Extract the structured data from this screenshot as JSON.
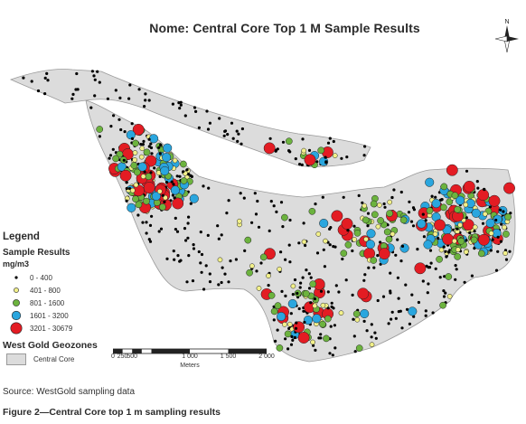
{
  "map": {
    "title": "Nome: Central Core Top 1 M Sample Results",
    "north_arrow_icon": "north-arrow-icon",
    "zone_fill": "#dcdcdc",
    "zone_outline": "#9a9a9a"
  },
  "legend": {
    "title": "Legend",
    "subtitle": "Sample Results",
    "units": "mg/m3",
    "classes": [
      {
        "label": "0 - 400",
        "color": "#000000",
        "size": 1.6
      },
      {
        "label": "401 - 800",
        "color": "#f2f08a",
        "size": 2.6
      },
      {
        "label": "801 - 1600",
        "color": "#6cb33e",
        "size": 3.6
      },
      {
        "label": "1601 - 3200",
        "color": "#2aa6de",
        "size": 4.8
      },
      {
        "label": "3201 - 30679",
        "color": "#e31c23",
        "size": 6.2
      }
    ],
    "geozones_title": "West Gold Geozones",
    "geozones": [
      {
        "label": "Central Core",
        "color": "#dcdcdc"
      }
    ]
  },
  "scale_bar": {
    "ticks": [
      "0",
      "250",
      "500",
      "1 000",
      "1 500",
      "2 000"
    ],
    "unit": "Meters"
  },
  "caption": {
    "source": "Source: WestGold sampling data",
    "figure": "Figure 2—Central Core top 1 m sampling results"
  }
}
